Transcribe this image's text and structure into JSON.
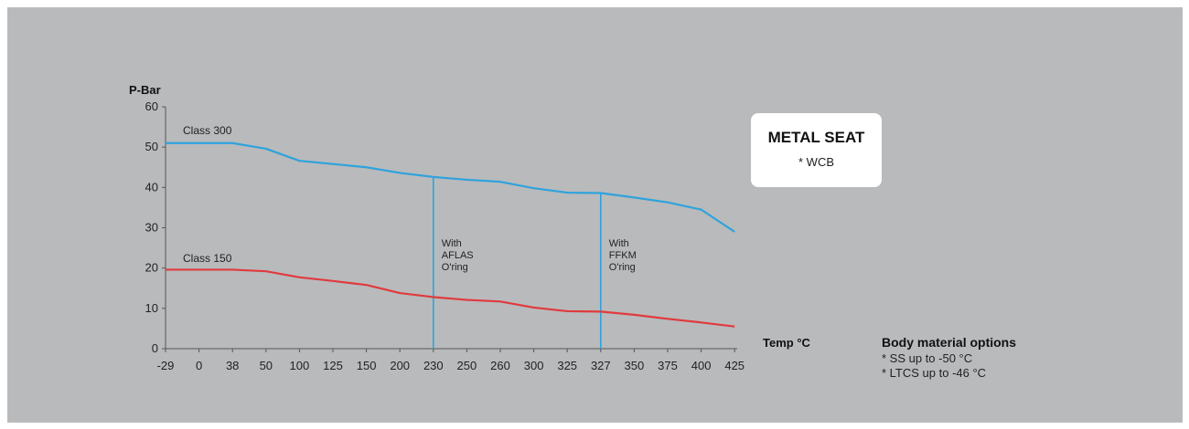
{
  "chart_data": {
    "type": "line",
    "ylabel": "P-Bar",
    "xlabel": "Temp °C",
    "x": [
      "-29",
      "0",
      "38",
      "50",
      "100",
      "125",
      "150",
      "200",
      "230",
      "250",
      "260",
      "300",
      "325",
      "327",
      "350",
      "375",
      "400",
      "425"
    ],
    "yticks": [
      "0",
      "10",
      "20",
      "30",
      "40",
      "50",
      "60"
    ],
    "ylim": [
      0,
      60
    ],
    "grid": false,
    "colors": {
      "class_300": "#2ea3dc",
      "class_150": "#e03a3e",
      "marker": "#2ea3dc"
    },
    "series": [
      {
        "name": "Class 300",
        "values": [
          51,
          51,
          51,
          49.6,
          46.6,
          45.8,
          45,
          43.6,
          42.6,
          41.9,
          41.4,
          39.8,
          38.7,
          38.6,
          37.5,
          36.3,
          34.5,
          29
        ]
      },
      {
        "name": "Class 150",
        "values": [
          19.6,
          19.6,
          19.6,
          19.2,
          17.7,
          16.8,
          15.8,
          13.8,
          12.8,
          12.1,
          11.7,
          10.2,
          9.3,
          9.2,
          8.4,
          7.4,
          6.5,
          5.5
        ]
      }
    ],
    "annotations": [
      {
        "x": "230",
        "y_top": 42.6,
        "lines": [
          "With",
          "AFLAS",
          "O'ring"
        ]
      },
      {
        "x": "327",
        "y_top": 38.6,
        "lines": [
          "With",
          "FFKM",
          "O'ring"
        ]
      }
    ]
  },
  "metal_seat": {
    "title": "METAL SEAT",
    "subtitle": "* WCB"
  },
  "body_material": {
    "title": "Body material options",
    "options": [
      "* SS up to -50 °C",
      "* LTCS up to -46 °C"
    ]
  }
}
